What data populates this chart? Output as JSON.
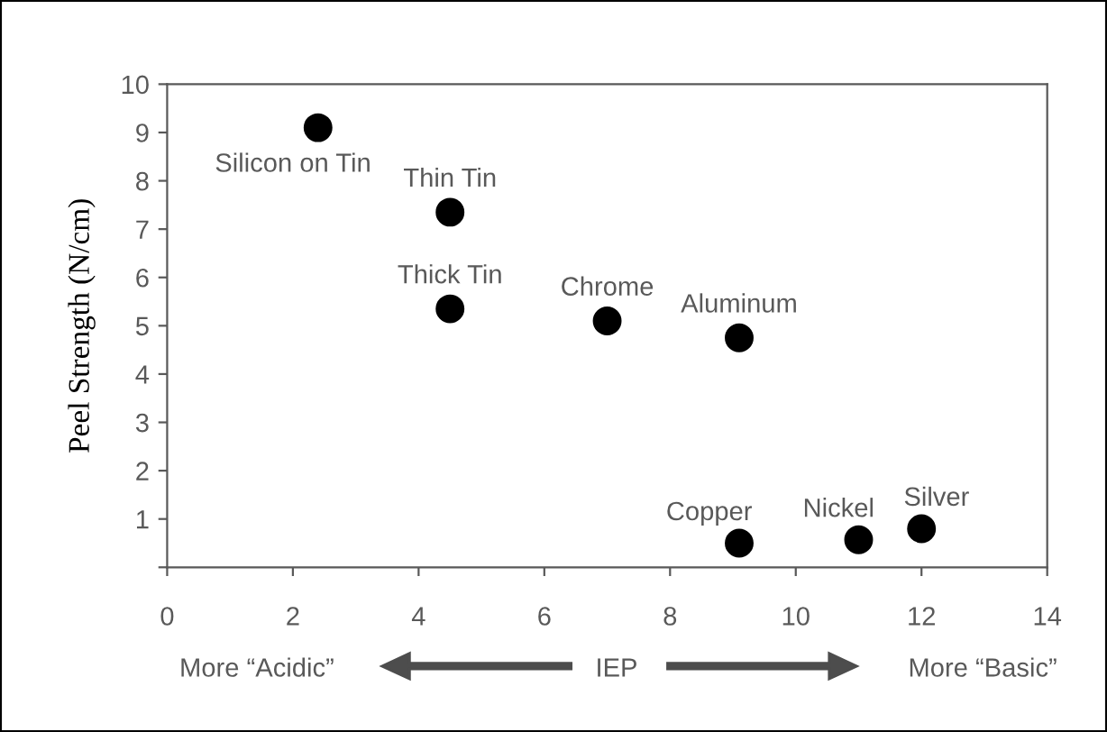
{
  "chart_data": {
    "type": "scatter",
    "ylabel": "Peel Strength (N/cm)",
    "x": [
      2.4,
      4.5,
      4.5,
      7.0,
      9.1,
      9.1,
      11.0,
      12.0
    ],
    "series": [
      {
        "color": "#000000",
        "values": [
          9.1,
          7.35,
          5.35,
          5.1,
          4.75,
          0.5,
          0.57,
          0.8
        ]
      }
    ],
    "xlim": [
      0,
      14
    ],
    "xticks": [
      0,
      2,
      4,
      6,
      8,
      10,
      12,
      14
    ],
    "ylim": [
      0,
      10
    ],
    "yticks": [
      {
        "value": 0,
        "label": null
      },
      1,
      2,
      3,
      4,
      5,
      6,
      7,
      8,
      9,
      10
    ],
    "grid": false,
    "legend": false,
    "marker": "circle",
    "annotations": [
      {
        "text": "Silicon on Tin",
        "x": 2.4,
        "y": 9.1
      },
      {
        "text": "Thin Tin",
        "x": 4.5,
        "y": 7.35
      },
      {
        "text": "Thick Tin",
        "x": 4.5,
        "y": 5.35
      },
      {
        "text": "Chrome",
        "x": 7.0,
        "y": 5.1
      },
      {
        "text": "Aluminum",
        "x": 9.1,
        "y": 4.75
      },
      {
        "text": "Copper",
        "x": 9.1,
        "y": 0.5
      },
      {
        "text": "Nickel",
        "x": 11.0,
        "y": 0.57
      },
      {
        "text": "Silver",
        "x": 12.0,
        "y": 0.8
      },
      "More “Acidic”",
      "IEP",
      "More “Basic”"
    ]
  }
}
